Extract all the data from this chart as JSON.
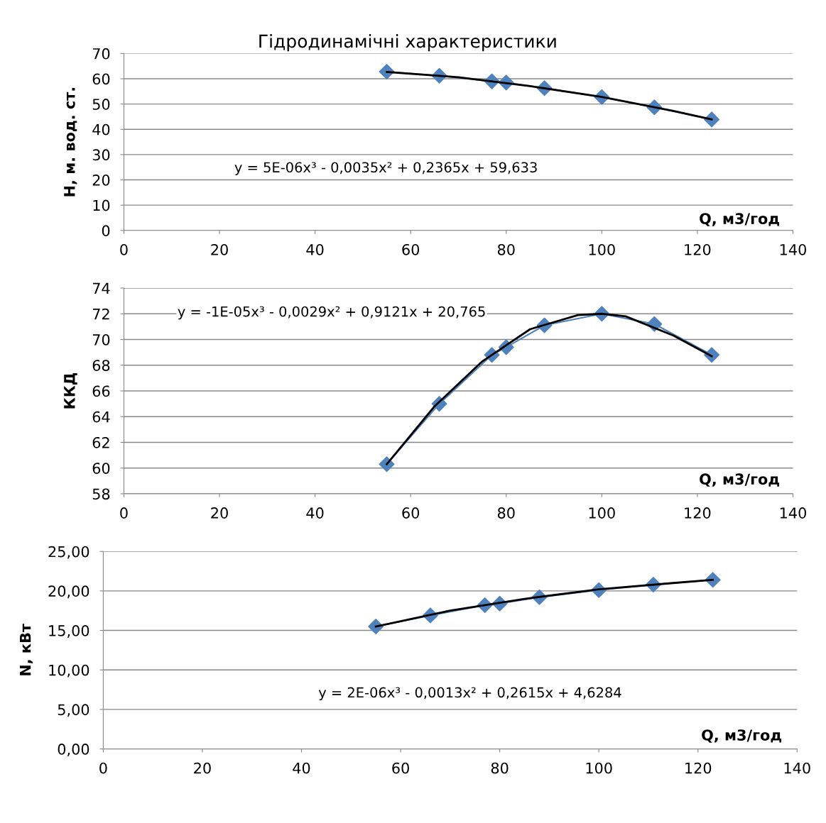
{
  "chart_data": [
    {
      "type": "scatter",
      "title": "Гідродинамічні характеристики",
      "xlabel": "Q, м3/год",
      "ylabel": "H, м. вод. ст.",
      "xlim": [
        0,
        140
      ],
      "xticks": [
        0,
        20,
        40,
        60,
        80,
        100,
        120,
        140
      ],
      "ylim": [
        0,
        70
      ],
      "yticks": [
        0,
        10,
        20,
        30,
        40,
        50,
        60,
        70
      ],
      "grid": "y",
      "legend": false,
      "annotations": [
        "y = 5E-06x³ - 0,0035x² + 0,2365x + 59,633"
      ],
      "series": [
        {
          "marker": "diamond",
          "color": "#4f81bd",
          "x": [
            55,
            66,
            77,
            80,
            88,
            100,
            111,
            123
          ],
          "values": [
            62.8,
            61.2,
            59.0,
            58.5,
            56.3,
            52.8,
            48.7,
            43.9
          ]
        },
        {
          "type": "line",
          "marker": "none",
          "color": "#000000",
          "x": [
            55,
            70,
            85,
            100,
            115,
            123
          ],
          "values": [
            62.7,
            60.6,
            57.1,
            52.8,
            47.3,
            43.9
          ]
        }
      ]
    },
    {
      "type": "scatter",
      "xlabel": "Q, м3/год",
      "ylabel": "ККД",
      "xlim": [
        0,
        140
      ],
      "xticks": [
        0,
        20,
        40,
        60,
        80,
        100,
        120,
        140
      ],
      "ylim": [
        58,
        74
      ],
      "yticks": [
        58,
        60,
        62,
        64,
        66,
        68,
        70,
        72,
        74
      ],
      "grid": "y",
      "legend": false,
      "annotations": [
        "y = -1E-05x³ - 0,0029x² + 0,9121x + 20,765"
      ],
      "series": [
        {
          "marker": "diamond",
          "color": "#4f81bd",
          "x": [
            55,
            66,
            77,
            80,
            88,
            100,
            111,
            123
          ],
          "values": [
            60.3,
            65.0,
            68.8,
            69.4,
            71.1,
            72.0,
            71.2,
            68.8
          ]
        },
        {
          "type": "line",
          "marker": "none",
          "color": "#000000",
          "x": [
            55,
            65,
            75,
            85,
            95,
            100,
            105,
            115,
            123
          ],
          "values": [
            60.3,
            64.8,
            68.3,
            70.8,
            71.9,
            72.0,
            71.8,
            70.3,
            68.7
          ]
        }
      ]
    },
    {
      "type": "scatter",
      "xlabel": "Q, м3/год",
      "ylabel": "N, кВт",
      "xlim": [
        0,
        140
      ],
      "xticks": [
        0,
        20,
        40,
        60,
        80,
        100,
        120,
        140
      ],
      "ylim": [
        0,
        25
      ],
      "yticks": [
        {
          "value": 0,
          "label": "0,00"
        },
        {
          "value": 5,
          "label": "5,00"
        },
        {
          "value": 10,
          "label": "10,00"
        },
        {
          "value": 15,
          "label": "15,00"
        },
        {
          "value": 20,
          "label": "20,00"
        },
        {
          "value": 25,
          "label": "25,00"
        }
      ],
      "grid": "y",
      "legend": false,
      "annotations": [
        "y = 2E-06x³ - 0,0013x² + 0,2615x + 4,6284"
      ],
      "series": [
        {
          "marker": "diamond",
          "color": "#4f81bd",
          "x": [
            55,
            66,
            77,
            80,
            88,
            100,
            111,
            123
          ],
          "values": [
            15.5,
            16.9,
            18.2,
            18.4,
            19.2,
            20.1,
            20.8,
            21.4
          ]
        },
        {
          "type": "line",
          "marker": "none",
          "color": "#000000",
          "x": [
            55,
            70,
            85,
            100,
            115,
            123
          ],
          "values": [
            15.5,
            17.5,
            19.0,
            20.2,
            21.0,
            21.4
          ]
        }
      ]
    }
  ]
}
